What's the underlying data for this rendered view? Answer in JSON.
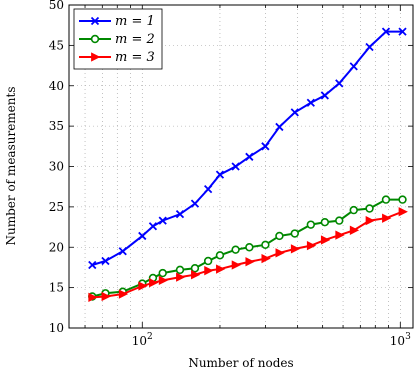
{
  "chart_data": {
    "type": "line",
    "xscale": "log",
    "xlabel": "Number of nodes",
    "ylabel": "Number of measurements",
    "xlim": [
      52,
      1120
    ],
    "ylim": [
      10,
      50
    ],
    "yticks": [
      10,
      15,
      20,
      25,
      30,
      35,
      40,
      45,
      50
    ],
    "xticks_major": [
      {
        "value": 100,
        "base": "10",
        "exp": "2"
      },
      {
        "value": 1000,
        "base": "10",
        "exp": "3"
      }
    ],
    "grid": true,
    "legend_position": "top-left",
    "x": [
      64,
      72,
      84,
      100,
      110,
      120,
      140,
      160,
      180,
      200,
      230,
      260,
      300,
      340,
      390,
      450,
      510,
      580,
      660,
      760,
      880,
      1020
    ],
    "series": [
      {
        "name": "m = 1",
        "color": "#0000ff",
        "marker": "x",
        "values": [
          17.8,
          18.3,
          19.5,
          21.4,
          22.6,
          23.3,
          24.1,
          25.4,
          27.2,
          29.0,
          30.0,
          31.2,
          32.5,
          34.9,
          36.7,
          37.9,
          38.8,
          40.3,
          42.4,
          44.8,
          46.7,
          46.7
        ]
      },
      {
        "name": "m = 2",
        "color": "#008800",
        "marker": "circle",
        "values": [
          13.9,
          14.3,
          14.5,
          15.5,
          16.2,
          16.8,
          17.2,
          17.4,
          18.3,
          19.0,
          19.7,
          20.0,
          20.3,
          21.4,
          21.7,
          22.8,
          23.1,
          23.3,
          24.6,
          24.8,
          25.9,
          25.9
        ]
      },
      {
        "name": "m = 3",
        "color": "#ff0000",
        "marker": "triangle-right",
        "values": [
          13.8,
          13.9,
          14.2,
          15.2,
          15.6,
          15.9,
          16.3,
          16.6,
          17.1,
          17.3,
          17.8,
          18.2,
          18.6,
          19.3,
          19.8,
          20.2,
          20.9,
          21.5,
          22.1,
          23.3,
          23.6,
          24.4
        ]
      }
    ]
  }
}
